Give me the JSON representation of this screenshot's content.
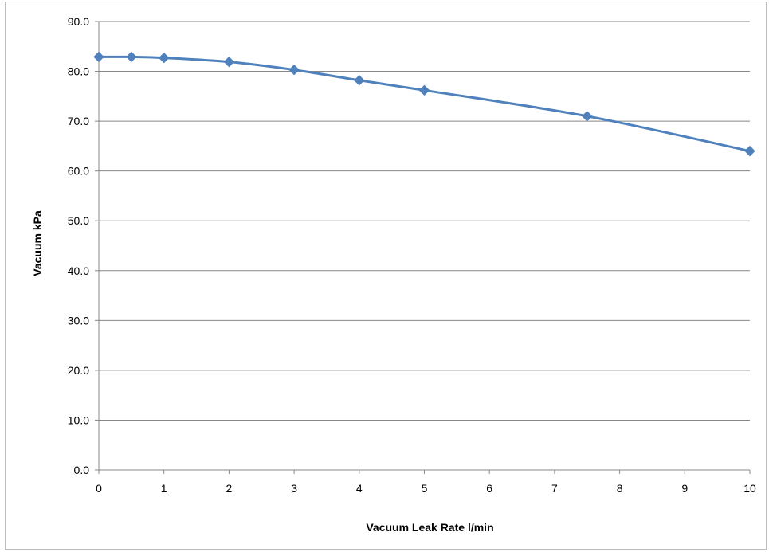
{
  "chart_data": {
    "type": "line",
    "xlabel": "Vacuum Leak Rate l/min",
    "ylabel": "Vacuum kPa",
    "xlim": [
      0,
      10
    ],
    "ylim": [
      0,
      90
    ],
    "x_ticks": [
      0,
      1,
      2,
      3,
      4,
      5,
      6,
      7,
      8,
      9,
      10
    ],
    "y_ticks": [
      0,
      10,
      20,
      30,
      40,
      50,
      60,
      70,
      80,
      90
    ],
    "y_tick_labels": [
      "0.0",
      "10.0",
      "20.0",
      "30.0",
      "40.0",
      "50.0",
      "60.0",
      "70.0",
      "80.0",
      "90.0"
    ],
    "grid": "horizontal",
    "legend": "none",
    "series": [
      {
        "x": [
          0,
          0.5,
          1,
          2,
          3,
          4,
          5,
          7.5,
          10
        ],
        "y": [
          82.9,
          82.9,
          82.7,
          81.9,
          80.3,
          78.2,
          76.2,
          71.0,
          64.0
        ],
        "color": "#4F81BD",
        "marker": "diamond",
        "smooth": true
      }
    ]
  }
}
